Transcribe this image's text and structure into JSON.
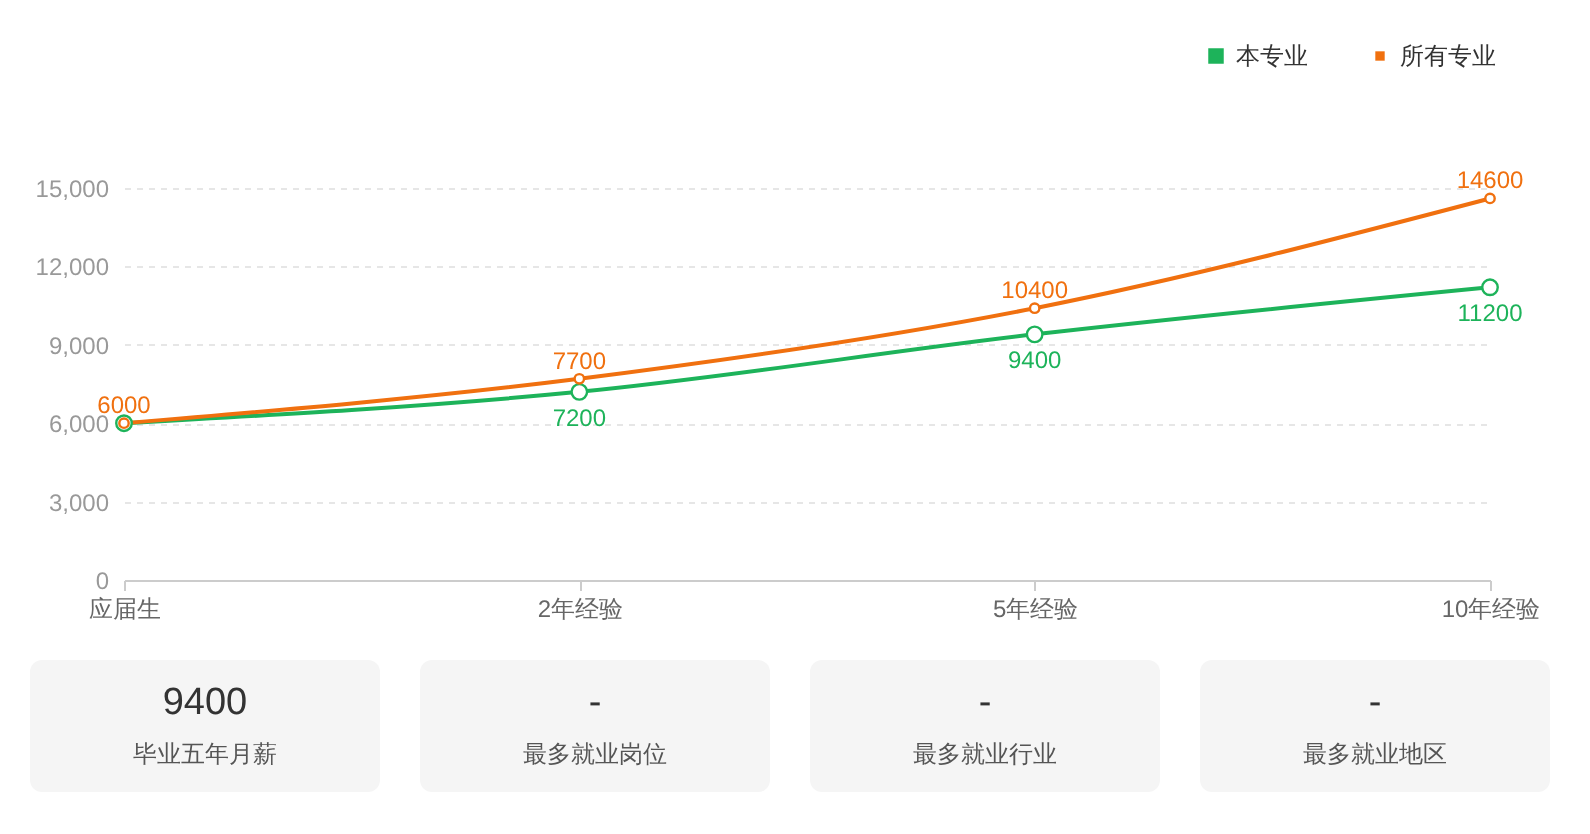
{
  "chart_data": [
    {
      "type": "line",
      "categories": [
        "应届生",
        "2年经验",
        "5年经验",
        "10年经验"
      ],
      "series": [
        {
          "name": "本专业",
          "color": "#1db35a",
          "values": [
            6000,
            7200,
            9400,
            11200
          ],
          "value_labels": [
            null,
            "7200",
            "9400",
            "11200"
          ]
        },
        {
          "name": "所有专业",
          "color": "#f0700f",
          "values": [
            6000,
            7700,
            10400,
            14600
          ],
          "value_labels": [
            "6000",
            "7700",
            "10400",
            "14600"
          ]
        }
      ],
      "ylim": [
        0,
        15000
      ],
      "yticks": [
        0,
        {
          "value": 3000,
          "label": "3,000"
        },
        {
          "value": 6000,
          "label": "6,000"
        },
        {
          "value": 9000,
          "label": "9,000"
        },
        {
          "value": 12000,
          "label": "12,000"
        },
        {
          "value": 15000,
          "label": "15,000"
        }
      ],
      "grid": "y",
      "legend": "top right",
      "marker": "circle",
      "line_style": "solid"
    },
    {
      "type": "other",
      "annotations": [
        "9400",
        "毕业五年月薪",
        "-",
        "最多就业岗位",
        "-",
        "最多就业行业",
        "-",
        "最多就业地区"
      ]
    }
  ]
}
